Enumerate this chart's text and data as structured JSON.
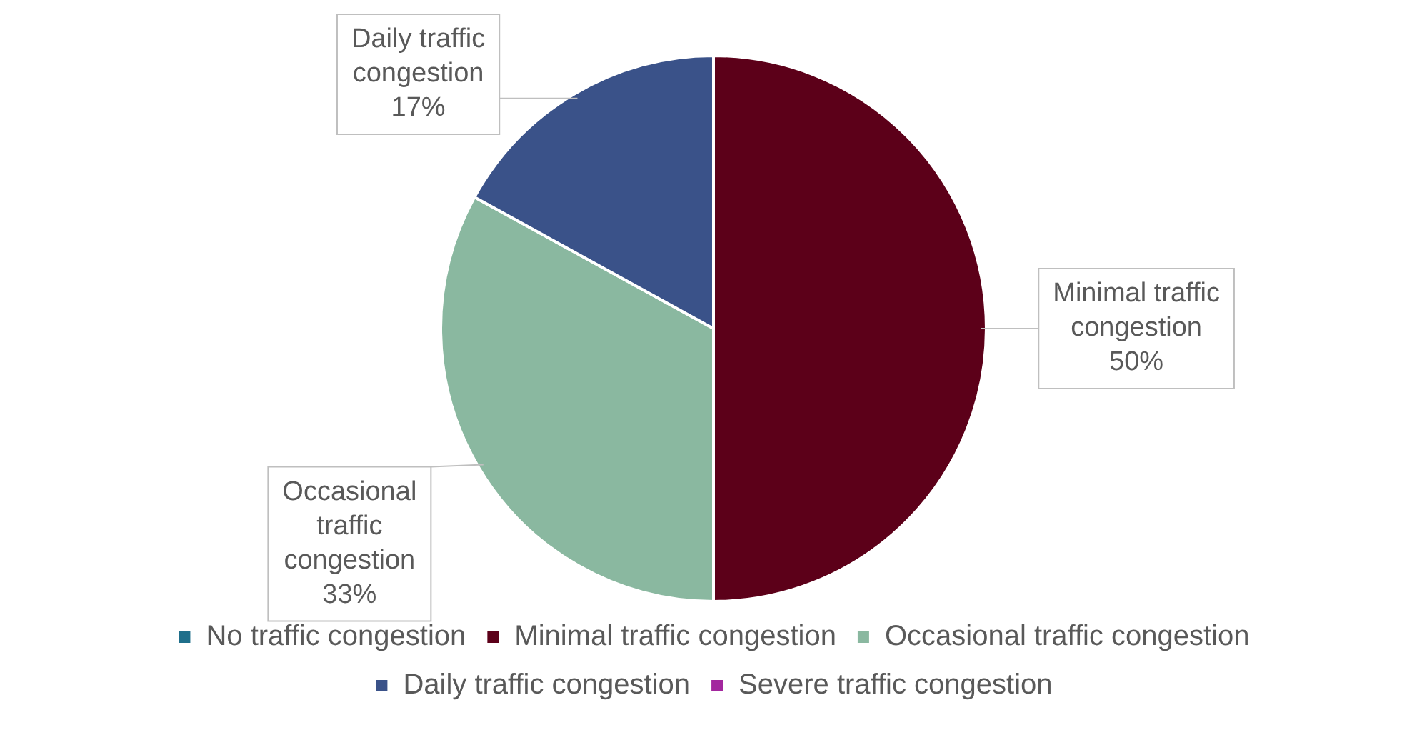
{
  "chart_data": {
    "type": "pie",
    "categories": [
      "No traffic congestion",
      "Minimal traffic congestion",
      "Occasional traffic congestion",
      "Daily traffic congestion",
      "Severe traffic congestion"
    ],
    "values": [
      0,
      50,
      33,
      17,
      0
    ],
    "colors": [
      "#1f6f8b",
      "#5c0019",
      "#8ab8a0",
      "#3a5289",
      "#a3279e"
    ],
    "value_labels": [
      null,
      "50%",
      "33%",
      "17%",
      null
    ],
    "legend": "bottom"
  }
}
